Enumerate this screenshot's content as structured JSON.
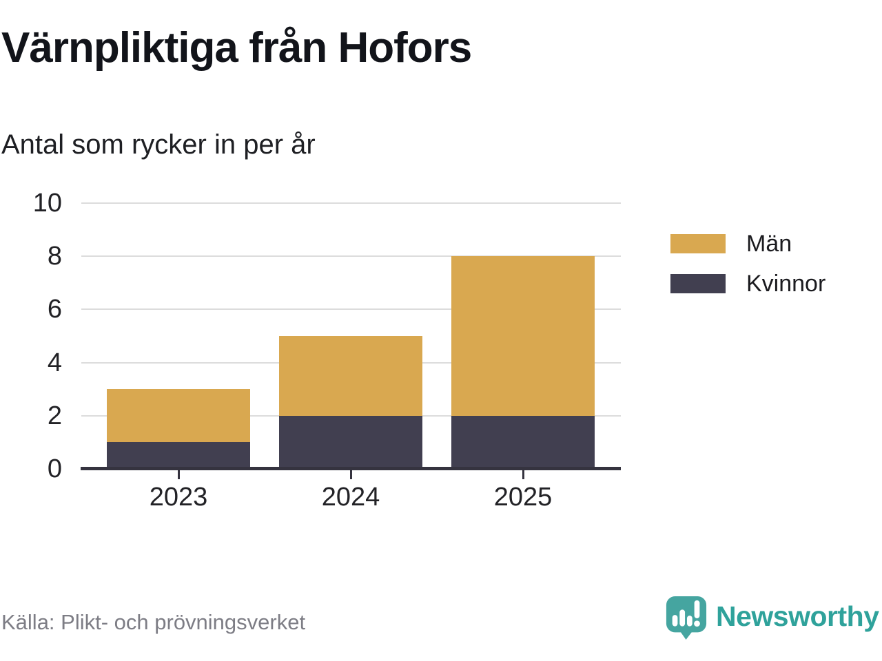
{
  "title": "Värnpliktiga från Hofors",
  "subtitle": "Antal som rycker in per år",
  "source": "Källa: Plikt- och prövningsverket",
  "brand": {
    "name": "Newsworthy",
    "icon": "newsworthy-speech-bubble-chart-icon",
    "icon_color": "#45a5a0",
    "text_color": "#2fa29b"
  },
  "colors": {
    "men": "#d9a850",
    "women": "#413f50",
    "grid": "#dcdcdc",
    "axis": "#35333f",
    "tick_labels": "#222226",
    "source_text": "#7d7d85"
  },
  "legend": [
    {
      "label": "Män",
      "color_key": "men"
    },
    {
      "label": "Kvinnor",
      "color_key": "women"
    }
  ],
  "chart_data": {
    "type": "bar",
    "stacked": true,
    "title": "Värnpliktiga från Hofors",
    "subtitle": "Antal som rycker in per år",
    "categories": [
      "2023",
      "2024",
      "2025"
    ],
    "series": [
      {
        "name": "Kvinnor",
        "color_key": "women",
        "values": [
          1,
          2,
          2
        ]
      },
      {
        "name": "Män",
        "color_key": "men",
        "values": [
          2,
          3,
          6
        ]
      }
    ],
    "totals": [
      3,
      5,
      8
    ],
    "xlabel": "",
    "ylabel": "",
    "ylim": [
      0,
      10
    ],
    "yticks": [
      0,
      2,
      4,
      6,
      8,
      10
    ],
    "grid": "horizontal",
    "legend_position": "right"
  }
}
